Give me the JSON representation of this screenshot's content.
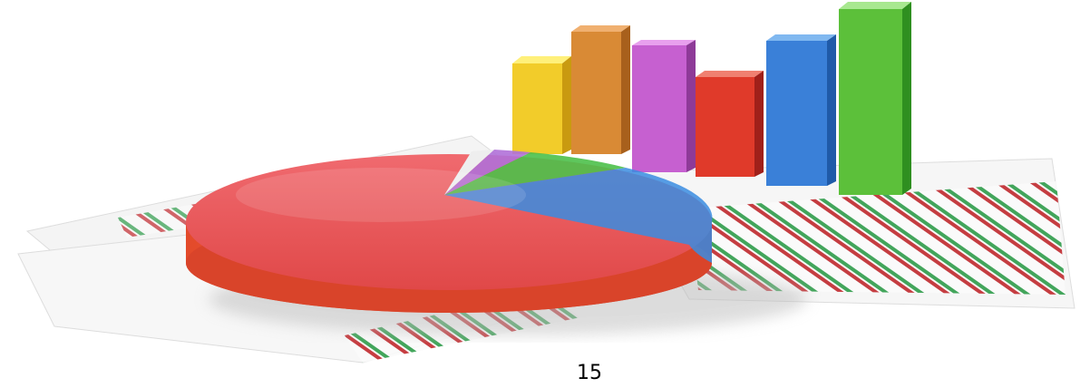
{
  "page_number": "15"
}
